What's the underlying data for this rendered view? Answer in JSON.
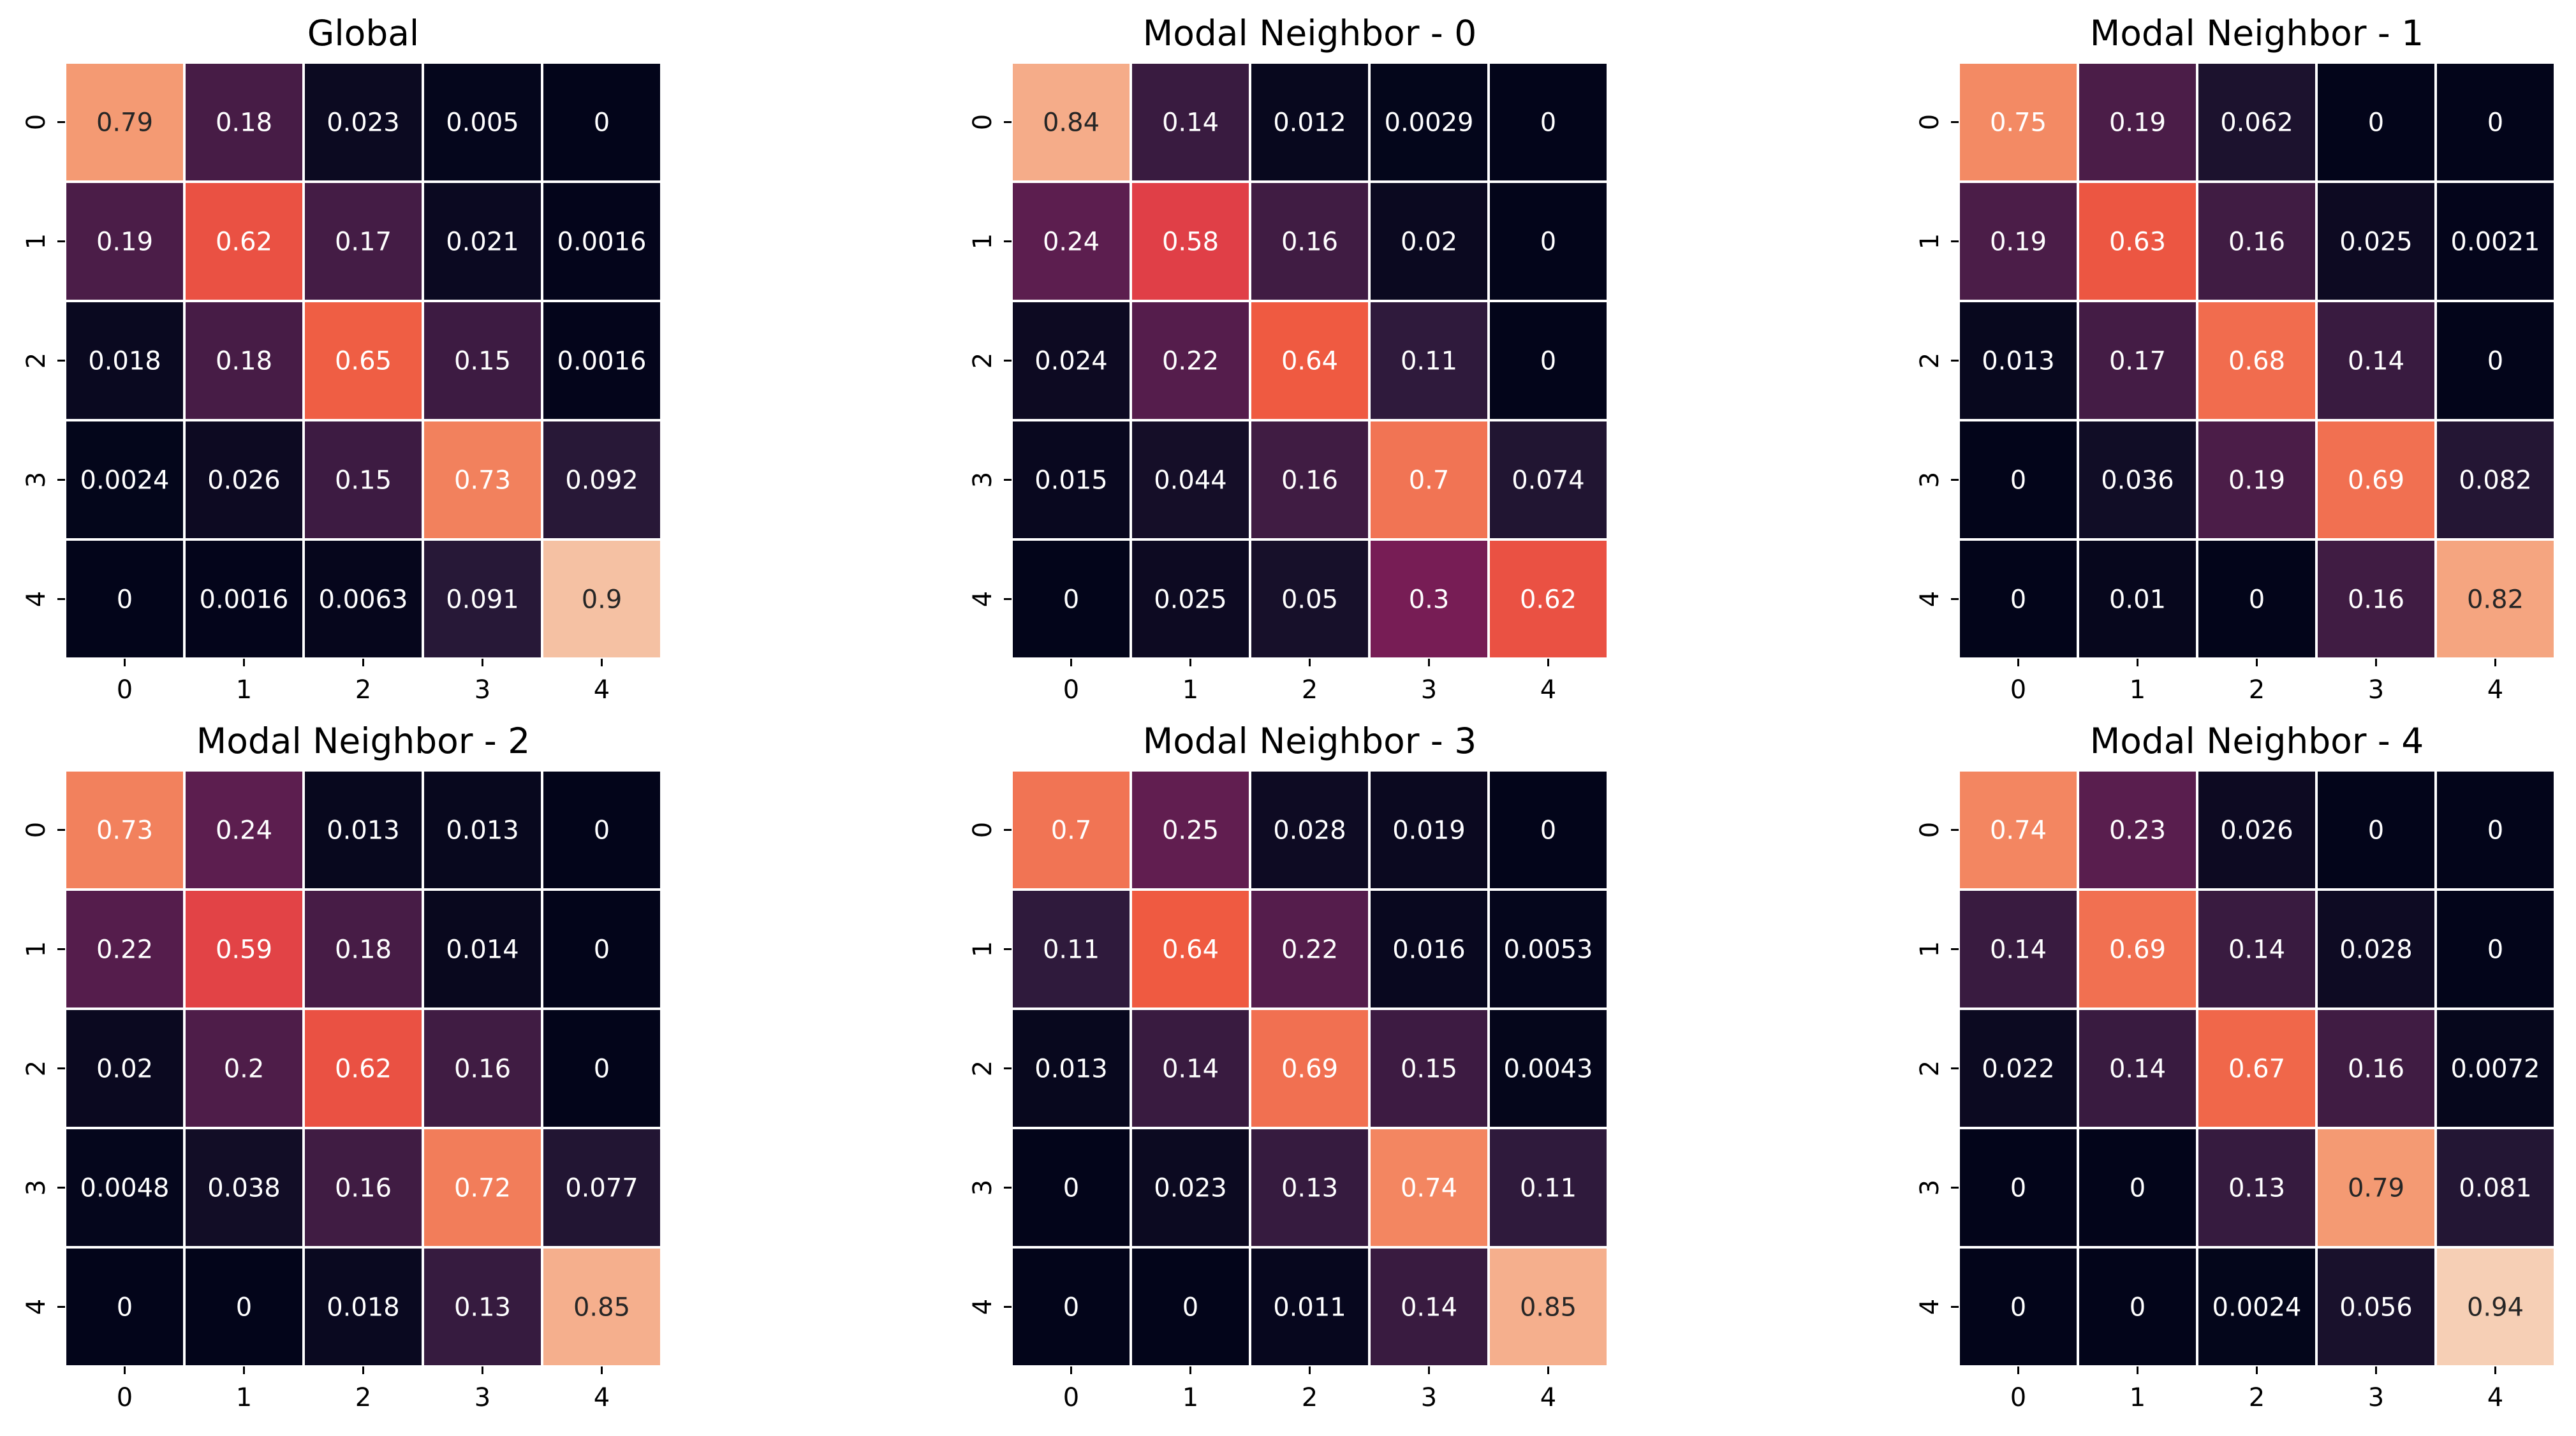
{
  "chart_data": [
    {
      "type": "heatmap",
      "title": "Global",
      "x_tick_labels": [
        "0",
        "1",
        "2",
        "3",
        "4"
      ],
      "y_tick_labels": [
        "0",
        "1",
        "2",
        "3",
        "4"
      ],
      "cell_labels": [
        [
          "0.79",
          "0.18",
          "0.023",
          "0.005",
          "0"
        ],
        [
          "0.19",
          "0.62",
          "0.17",
          "0.021",
          "0.0016"
        ],
        [
          "0.018",
          "0.18",
          "0.65",
          "0.15",
          "0.0016"
        ],
        [
          "0.0024",
          "0.026",
          "0.15",
          "0.73",
          "0.092"
        ],
        [
          "0",
          "0.0016",
          "0.0063",
          "0.091",
          "0.9"
        ]
      ]
    },
    {
      "type": "heatmap",
      "title": "Modal Neighbor - 0",
      "x_tick_labels": [
        "0",
        "1",
        "2",
        "3",
        "4"
      ],
      "y_tick_labels": [
        "0",
        "1",
        "2",
        "3",
        "4"
      ],
      "cell_labels": [
        [
          "0.84",
          "0.14",
          "0.012",
          "0.0029",
          "0"
        ],
        [
          "0.24",
          "0.58",
          "0.16",
          "0.02",
          "0"
        ],
        [
          "0.024",
          "0.22",
          "0.64",
          "0.11",
          "0"
        ],
        [
          "0.015",
          "0.044",
          "0.16",
          "0.7",
          "0.074"
        ],
        [
          "0",
          "0.025",
          "0.05",
          "0.3",
          "0.62"
        ]
      ]
    },
    {
      "type": "heatmap",
      "title": "Modal Neighbor - 1",
      "x_tick_labels": [
        "0",
        "1",
        "2",
        "3",
        "4"
      ],
      "y_tick_labels": [
        "0",
        "1",
        "2",
        "3",
        "4"
      ],
      "cell_labels": [
        [
          "0.75",
          "0.19",
          "0.062",
          "0",
          "0"
        ],
        [
          "0.19",
          "0.63",
          "0.16",
          "0.025",
          "0.0021"
        ],
        [
          "0.013",
          "0.17",
          "0.68",
          "0.14",
          "0"
        ],
        [
          "0",
          "0.036",
          "0.19",
          "0.69",
          "0.082"
        ],
        [
          "0",
          "0.01",
          "0",
          "0.16",
          "0.82"
        ]
      ]
    },
    {
      "type": "heatmap",
      "title": "Modal Neighbor - 2",
      "x_tick_labels": [
        "0",
        "1",
        "2",
        "3",
        "4"
      ],
      "y_tick_labels": [
        "0",
        "1",
        "2",
        "3",
        "4"
      ],
      "cell_labels": [
        [
          "0.73",
          "0.24",
          "0.013",
          "0.013",
          "0"
        ],
        [
          "0.22",
          "0.59",
          "0.18",
          "0.014",
          "0"
        ],
        [
          "0.02",
          "0.2",
          "0.62",
          "0.16",
          "0"
        ],
        [
          "0.0048",
          "0.038",
          "0.16",
          "0.72",
          "0.077"
        ],
        [
          "0",
          "0",
          "0.018",
          "0.13",
          "0.85"
        ]
      ]
    },
    {
      "type": "heatmap",
      "title": "Modal Neighbor - 3",
      "x_tick_labels": [
        "0",
        "1",
        "2",
        "3",
        "4"
      ],
      "y_tick_labels": [
        "0",
        "1",
        "2",
        "3",
        "4"
      ],
      "cell_labels": [
        [
          "0.7",
          "0.25",
          "0.028",
          "0.019",
          "0"
        ],
        [
          "0.11",
          "0.64",
          "0.22",
          "0.016",
          "0.0053"
        ],
        [
          "0.013",
          "0.14",
          "0.69",
          "0.15",
          "0.0043"
        ],
        [
          "0",
          "0.023",
          "0.13",
          "0.74",
          "0.11"
        ],
        [
          "0",
          "0",
          "0.011",
          "0.14",
          "0.85"
        ]
      ]
    },
    {
      "type": "heatmap",
      "title": "Modal Neighbor - 4",
      "x_tick_labels": [
        "0",
        "1",
        "2",
        "3",
        "4"
      ],
      "y_tick_labels": [
        "0",
        "1",
        "2",
        "3",
        "4"
      ],
      "cell_labels": [
        [
          "0.74",
          "0.23",
          "0.026",
          "0",
          "0"
        ],
        [
          "0.14",
          "0.69",
          "0.14",
          "0.028",
          "0"
        ],
        [
          "0.022",
          "0.14",
          "0.67",
          "0.16",
          "0.0072"
        ],
        [
          "0",
          "0",
          "0.13",
          "0.79",
          "0.081"
        ],
        [
          "0",
          "0",
          "0.0024",
          "0.056",
          "0.94"
        ]
      ]
    }
  ],
  "colormap": {
    "name": "rocket",
    "vmin": 0,
    "vmax": 1,
    "stops": [
      "#03051a",
      "#2b1a3a",
      "#5c1e4f",
      "#921c5b",
      "#cb1b4f",
      "#ef5a41",
      "#f4936a",
      "#f6d3b9",
      "#faebdd"
    ],
    "light_text": "#ffffff",
    "dark_text": "#262626"
  }
}
